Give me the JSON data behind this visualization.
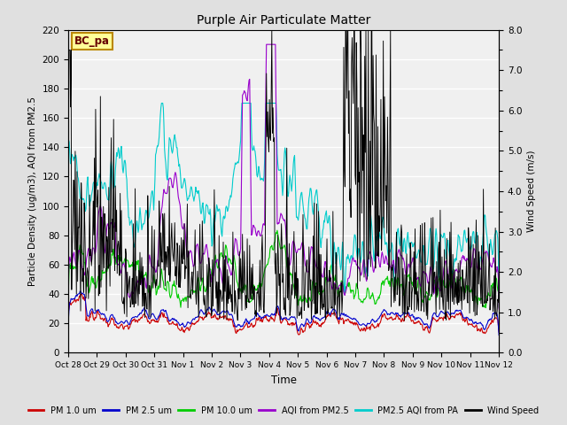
{
  "title": "Purple Air Particulate Matter",
  "ylabel_left": "Particle Density (ug/m3), AQI from PM2.5",
  "ylabel_right": "Wind Speed (m/s)",
  "xlabel": "Time",
  "ylim_left": [
    0,
    220
  ],
  "ylim_right": [
    0.0,
    8.0
  ],
  "yticks_left": [
    0,
    20,
    40,
    60,
    80,
    100,
    120,
    140,
    160,
    180,
    200,
    220
  ],
  "yticks_right": [
    0.0,
    1.0,
    2.0,
    3.0,
    4.0,
    5.0,
    6.0,
    7.0,
    8.0
  ],
  "xtick_labels": [
    "Oct 28",
    "Oct 29",
    "Oct 30",
    "Oct 31",
    "Nov 1",
    "Nov 2",
    "Nov 3",
    "Nov 4",
    "Nov 5",
    "Nov 6",
    "Nov 7",
    "Nov 8",
    "Nov 9",
    "Nov 10",
    "Nov 11",
    "Nov 12"
  ],
  "annotation_text": "BC_pa",
  "annotation_facecolor": "#ffff99",
  "annotation_edgecolor": "#bb8800",
  "colors": {
    "pm1": "#cc0000",
    "pm25": "#0000cc",
    "pm10": "#00cc00",
    "aqi_pm25": "#9900cc",
    "aqi_pa": "#00cccc",
    "wind": "#000000"
  },
  "legend_labels": [
    "PM 1.0 um",
    "PM 2.5 um",
    "PM 10.0 um",
    "AQI from PM2.5",
    "PM2.5 AQI from PA",
    "Wind Speed"
  ],
  "background_color": "#e0e0e0",
  "plot_bg_color": "#f0f0f0",
  "grid_color": "#ffffff",
  "n_points": 720,
  "seed": 7
}
